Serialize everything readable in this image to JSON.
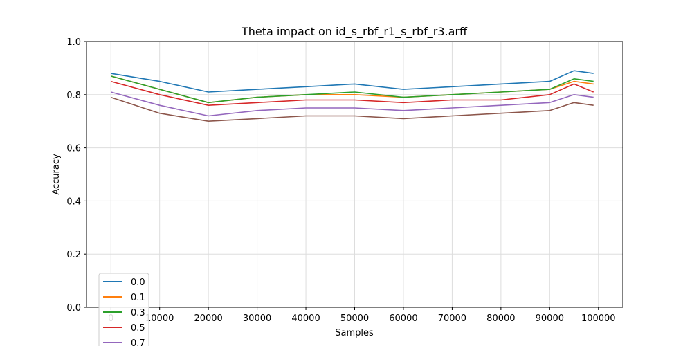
{
  "chart_data": {
    "type": "line",
    "title": "Theta impact on id_s_rbf_r1_s_rbf_r3.arff",
    "xlabel": "Samples",
    "ylabel": "Accuracy",
    "xlim": [
      -5000,
      105000
    ],
    "ylim": [
      0.0,
      1.0
    ],
    "grid": true,
    "legend_position": "lower-left",
    "x_ticks": [
      0,
      10000,
      20000,
      30000,
      40000,
      50000,
      60000,
      70000,
      80000,
      90000,
      100000
    ],
    "y_ticks": [
      0.0,
      0.2,
      0.4,
      0.6,
      0.8,
      1.0
    ],
    "x_tick_labels": [
      "0",
      "10000",
      "20000",
      "30000",
      "40000",
      "50000",
      "60000",
      "70000",
      "80000",
      "90000",
      "100000"
    ],
    "y_tick_labels": [
      "0.0",
      "0.2",
      "0.4",
      "0.6",
      "0.8",
      "1.0"
    ],
    "x": [
      0,
      10000,
      20000,
      30000,
      40000,
      50000,
      60000,
      70000,
      80000,
      90000,
      95000,
      99000
    ],
    "series": [
      {
        "name": "0.0",
        "color": "#1f77b4",
        "values": [
          0.88,
          0.85,
          0.81,
          0.82,
          0.83,
          0.84,
          0.82,
          0.83,
          0.84,
          0.85,
          0.89,
          0.88
        ]
      },
      {
        "name": "0.1",
        "color": "#ff7f0e",
        "values": [
          0.87,
          0.82,
          0.77,
          0.79,
          0.8,
          0.8,
          0.79,
          0.8,
          0.81,
          0.82,
          0.85,
          0.84
        ]
      },
      {
        "name": "0.3",
        "color": "#2ca02c",
        "values": [
          0.87,
          0.82,
          0.77,
          0.79,
          0.8,
          0.81,
          0.79,
          0.8,
          0.81,
          0.82,
          0.86,
          0.85
        ]
      },
      {
        "name": "0.5",
        "color": "#d62728",
        "values": [
          0.85,
          0.8,
          0.76,
          0.77,
          0.78,
          0.78,
          0.77,
          0.78,
          0.78,
          0.8,
          0.84,
          0.81
        ]
      },
      {
        "name": "0.7",
        "color": "#9467bd",
        "values": [
          0.81,
          0.76,
          0.72,
          0.74,
          0.75,
          0.75,
          0.74,
          0.75,
          0.76,
          0.77,
          0.8,
          0.79
        ]
      },
      {
        "color": "#8c564b",
        "values": [
          0.79,
          0.73,
          0.7,
          0.71,
          0.72,
          0.72,
          0.71,
          0.72,
          0.73,
          0.74,
          0.77,
          0.76
        ]
      }
    ]
  }
}
